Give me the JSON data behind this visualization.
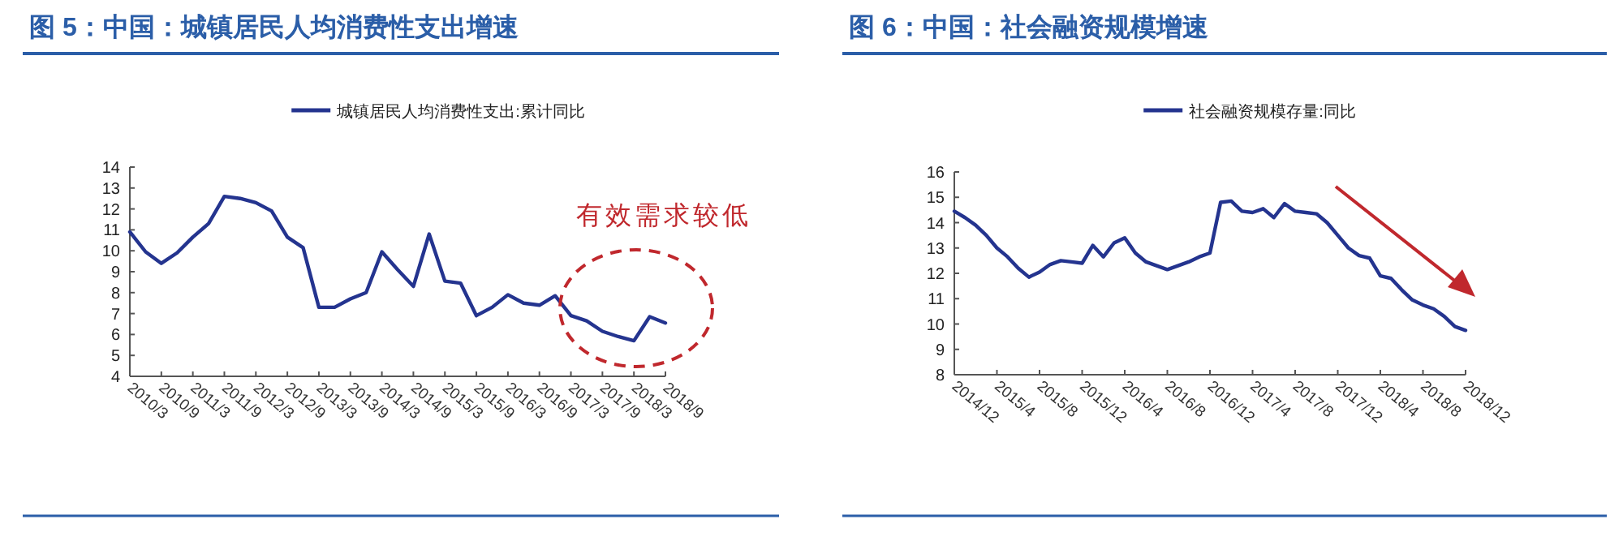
{
  "chart_data": [
    {
      "type": "line",
      "title": "图 5：中国：城镇居民人均消费性支出增速",
      "legend": "top",
      "marker": "none",
      "line_style": "solid",
      "grid": false,
      "x": [
        "2010-03",
        "2010-06",
        "2010-09",
        "2010-12",
        "2011-03",
        "2011-06",
        "2011-09",
        "2011-12",
        "2012-03",
        "2012-06",
        "2012-09",
        "2012-12",
        "2013-03",
        "2013-06",
        "2013-09",
        "2013-12",
        "2014-03",
        "2014-06",
        "2014-09",
        "2014-12",
        "2015-03",
        "2015-06",
        "2015-09",
        "2015-12",
        "2016-03",
        "2016-06",
        "2016-09",
        "2016-12",
        "2017-03",
        "2017-06",
        "2017-09",
        "2017-12",
        "2018-03",
        "2018-06",
        "2018-09"
      ],
      "series": [
        {
          "name": "城镇居民人均消费性支出:累计同比",
          "color": "#24348f",
          "values": [
            10.9,
            9.95,
            9.4,
            9.9,
            10.65,
            11.3,
            12.6,
            12.5,
            12.3,
            11.9,
            10.65,
            10.15,
            7.3,
            7.3,
            7.7,
            8.0,
            9.95,
            9.1,
            8.3,
            10.8,
            8.55,
            8.45,
            6.9,
            7.3,
            7.9,
            7.5,
            7.4,
            7.85,
            6.9,
            6.65,
            6.15,
            5.9,
            5.7,
            6.85,
            6.55
          ]
        }
      ],
      "xlim": [
        "2010-03",
        "2018-09"
      ],
      "xticks": [
        {
          "value": "2010-03",
          "label": "2010/3"
        },
        {
          "value": "2010-09",
          "label": "2010/9"
        },
        {
          "value": "2011-03",
          "label": "2011/3"
        },
        {
          "value": "2011-09",
          "label": "2011/9"
        },
        {
          "value": "2012-03",
          "label": "2012/3"
        },
        {
          "value": "2012-09",
          "label": "2012/9"
        },
        {
          "value": "2013-03",
          "label": "2013/3"
        },
        {
          "value": "2013-09",
          "label": "2013/9"
        },
        {
          "value": "2014-03",
          "label": "2014/3"
        },
        {
          "value": "2014-09",
          "label": "2014/9"
        },
        {
          "value": "2015-03",
          "label": "2015/3"
        },
        {
          "value": "2015-09",
          "label": "2015/9"
        },
        {
          "value": "2016-03",
          "label": "2016/3"
        },
        {
          "value": "2016-09",
          "label": "2016/9"
        },
        {
          "value": "2017-03",
          "label": "2017/3"
        },
        {
          "value": "2017-09",
          "label": "2017/9"
        },
        {
          "value": "2018-03",
          "label": "2018/3"
        },
        {
          "value": "2018-09",
          "label": "2018/9"
        }
      ],
      "ylim": [
        4,
        14
      ],
      "yticks": [
        4,
        5,
        6,
        7,
        8,
        9,
        10,
        11,
        12,
        13,
        14
      ],
      "annotations": [
        "有效需求较低"
      ]
    },
    {
      "type": "line",
      "title": "图 6：中国：社会融资规模增速",
      "legend": "top",
      "marker": "none",
      "line_style": "solid",
      "grid": false,
      "x": [
        "2014-12",
        "2015-01",
        "2015-02",
        "2015-03",
        "2015-04",
        "2015-05",
        "2015-06",
        "2015-07",
        "2015-08",
        "2015-09",
        "2015-10",
        "2015-11",
        "2015-12",
        "2016-01",
        "2016-02",
        "2016-03",
        "2016-04",
        "2016-05",
        "2016-06",
        "2016-07",
        "2016-08",
        "2016-09",
        "2016-10",
        "2016-11",
        "2016-12",
        "2017-01",
        "2017-02",
        "2017-03",
        "2017-04",
        "2017-05",
        "2017-06",
        "2017-07",
        "2017-08",
        "2017-09",
        "2017-10",
        "2017-11",
        "2017-12",
        "2018-01",
        "2018-02",
        "2018-03",
        "2018-04",
        "2018-05",
        "2018-06",
        "2018-07",
        "2018-08",
        "2018-09",
        "2018-10",
        "2018-11",
        "2018-12"
      ],
      "series": [
        {
          "name": "社会融资规模存量:同比",
          "color": "#24348f",
          "values": [
            14.45,
            14.2,
            13.9,
            13.5,
            13.0,
            12.65,
            12.2,
            11.85,
            12.05,
            12.35,
            12.5,
            12.45,
            12.4,
            13.1,
            12.65,
            13.2,
            13.4,
            12.8,
            12.45,
            12.3,
            12.15,
            12.3,
            12.45,
            12.65,
            12.8,
            14.8,
            14.85,
            14.45,
            14.4,
            14.55,
            14.2,
            14.75,
            14.45,
            14.4,
            14.35,
            14.0,
            13.5,
            13.0,
            12.7,
            12.6,
            11.9,
            11.8,
            11.35,
            10.95,
            10.75,
            10.6,
            10.3,
            9.9,
            9.75
          ]
        }
      ],
      "xlim": [
        "2014-12",
        "2018-12"
      ],
      "xticks": [
        {
          "value": "2014-12",
          "label": "2014/12"
        },
        {
          "value": "2015-04",
          "label": "2015/4"
        },
        {
          "value": "2015-08",
          "label": "2015/8"
        },
        {
          "value": "2015-12",
          "label": "2015/12"
        },
        {
          "value": "2016-04",
          "label": "2016/4"
        },
        {
          "value": "2016-08",
          "label": "2016/8"
        },
        {
          "value": "2016-12",
          "label": "2016/12"
        },
        {
          "value": "2017-04",
          "label": "2017/4"
        },
        {
          "value": "2017-08",
          "label": "2017/8"
        },
        {
          "value": "2017-12",
          "label": "2017/12"
        },
        {
          "value": "2018-04",
          "label": "2018/4"
        },
        {
          "value": "2018-08",
          "label": "2018/8"
        },
        {
          "value": "2018-12",
          "label": "2018/12"
        }
      ],
      "ylim": [
        8,
        16
      ],
      "yticks": [
        8,
        9,
        10,
        11,
        12,
        13,
        14,
        15,
        16
      ]
    }
  ]
}
